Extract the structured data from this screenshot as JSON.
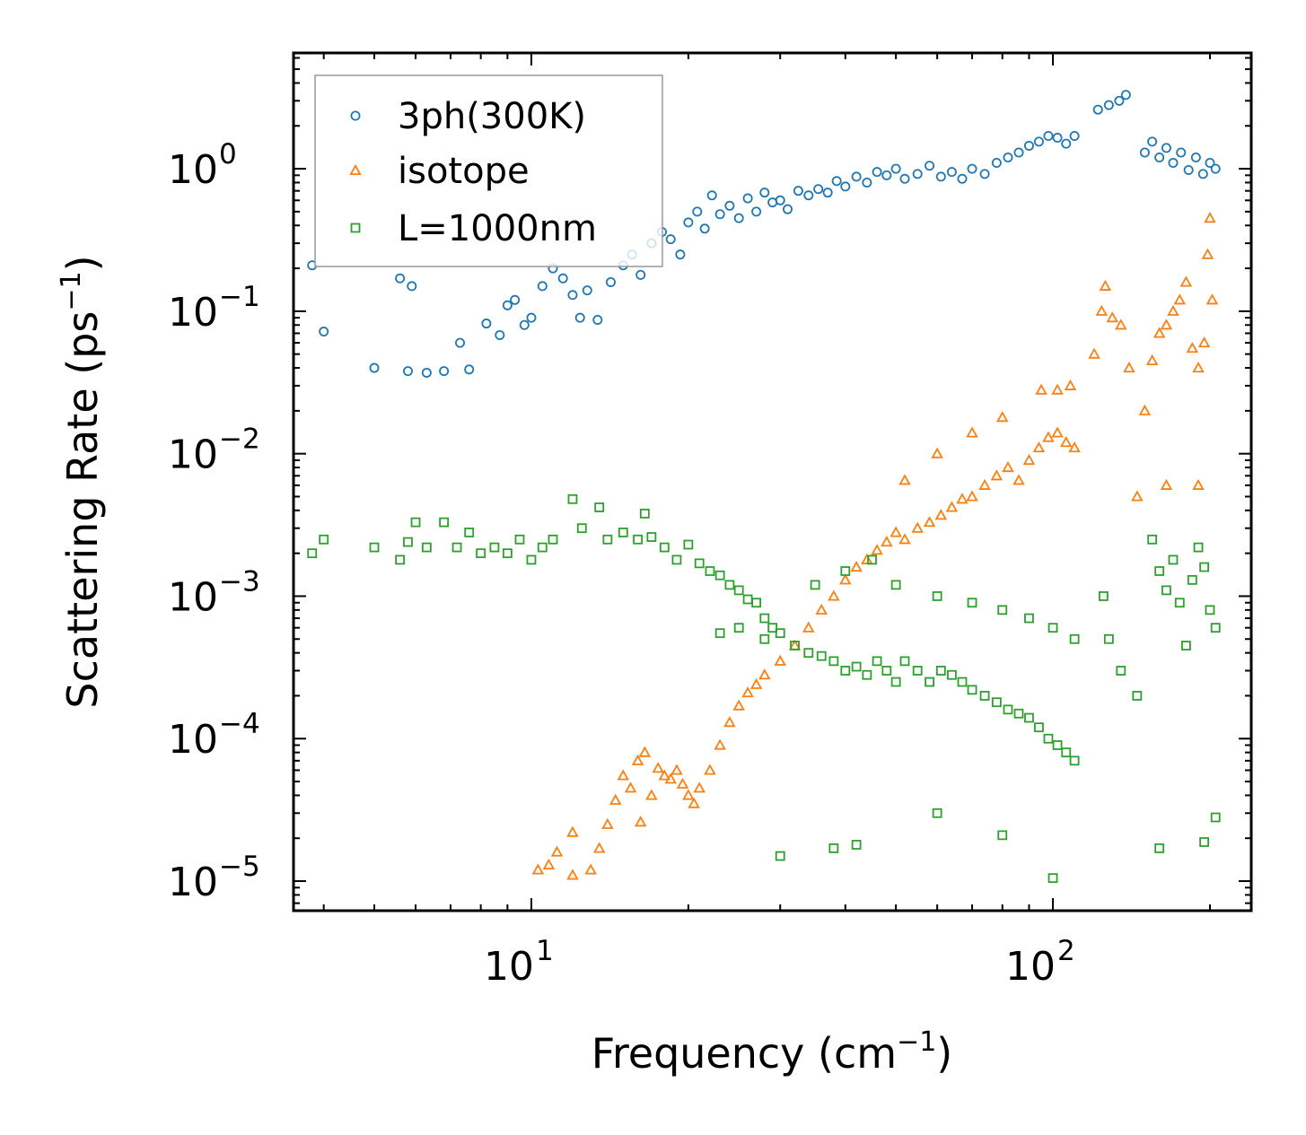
{
  "chart_data": {
    "type": "scatter",
    "xscale": "log",
    "yscale": "log",
    "xlim": [
      3.5,
      240
    ],
    "ylim": [
      6.2e-06,
      6.5
    ],
    "xlabel": {
      "text": "Frequency (cm",
      "sup": "−1",
      "close": ")"
    },
    "ylabel": {
      "text": "Scattering Rate (ps",
      "sup": "−1",
      "close": ")"
    },
    "x_ticks": [
      {
        "value": 10,
        "base": "10",
        "exp": "1"
      },
      {
        "value": 100,
        "base": "10",
        "exp": "2"
      }
    ],
    "y_ticks": [
      {
        "value": 1,
        "base": "10",
        "exp": "0"
      },
      {
        "value": 0.1,
        "base": "10",
        "exp": "−1"
      },
      {
        "value": 0.01,
        "base": "10",
        "exp": "−2"
      },
      {
        "value": 0.001,
        "base": "10",
        "exp": "−3"
      },
      {
        "value": 0.0001,
        "base": "10",
        "exp": "−4"
      },
      {
        "value": 1e-05,
        "base": "10",
        "exp": "−5"
      }
    ],
    "legend": {
      "placement": "top-left"
    },
    "series": [
      {
        "name": "3ph(300K)",
        "marker": "circle",
        "color": "#1f77b4",
        "points": [
          [
            3.8,
            0.21
          ],
          [
            4.0,
            0.072
          ],
          [
            5.0,
            0.04
          ],
          [
            5.6,
            0.17
          ],
          [
            5.8,
            0.038
          ],
          [
            5.9,
            0.15
          ],
          [
            6.3,
            0.037
          ],
          [
            6.8,
            0.038
          ],
          [
            7.3,
            0.06
          ],
          [
            7.6,
            0.039
          ],
          [
            8.2,
            0.082
          ],
          [
            8.7,
            0.068
          ],
          [
            9.0,
            0.11
          ],
          [
            9.3,
            0.12
          ],
          [
            9.7,
            0.08
          ],
          [
            10.0,
            0.09
          ],
          [
            10.5,
            0.15
          ],
          [
            11.0,
            0.2
          ],
          [
            11.5,
            0.17
          ],
          [
            12.0,
            0.13
          ],
          [
            12.4,
            0.09
          ],
          [
            12.8,
            0.14
          ],
          [
            13.4,
            0.087
          ],
          [
            14.2,
            0.16
          ],
          [
            15.0,
            0.21
          ],
          [
            15.6,
            0.25
          ],
          [
            16.2,
            0.18
          ],
          [
            17.0,
            0.3
          ],
          [
            17.8,
            0.36
          ],
          [
            18.5,
            0.32
          ],
          [
            19.3,
            0.25
          ],
          [
            20.0,
            0.42
          ],
          [
            20.8,
            0.5
          ],
          [
            21.5,
            0.38
          ],
          [
            22.2,
            0.65
          ],
          [
            23.0,
            0.48
          ],
          [
            24.0,
            0.55
          ],
          [
            25.0,
            0.45
          ],
          [
            26.0,
            0.62
          ],
          [
            27.0,
            0.5
          ],
          [
            28.0,
            0.68
          ],
          [
            29.0,
            0.58
          ],
          [
            30.0,
            0.6
          ],
          [
            31.0,
            0.52
          ],
          [
            32.5,
            0.7
          ],
          [
            34.0,
            0.65
          ],
          [
            35.5,
            0.72
          ],
          [
            37.0,
            0.68
          ],
          [
            38.5,
            0.82
          ],
          [
            40.0,
            0.75
          ],
          [
            42.0,
            0.88
          ],
          [
            44.0,
            0.8
          ],
          [
            46.0,
            0.95
          ],
          [
            48.0,
            0.9
          ],
          [
            50.0,
            1.0
          ],
          [
            52.0,
            0.85
          ],
          [
            55.0,
            0.92
          ],
          [
            58.0,
            1.05
          ],
          [
            61.0,
            0.88
          ],
          [
            64.0,
            0.95
          ],
          [
            67.0,
            0.85
          ],
          [
            70.0,
            1.0
          ],
          [
            74.0,
            0.92
          ],
          [
            78.0,
            1.1
          ],
          [
            82.0,
            1.2
          ],
          [
            86.0,
            1.3
          ],
          [
            90.0,
            1.45
          ],
          [
            94.0,
            1.55
          ],
          [
            98.0,
            1.7
          ],
          [
            102.0,
            1.65
          ],
          [
            106.0,
            1.5
          ],
          [
            110.0,
            1.7
          ],
          [
            122.0,
            2.6
          ],
          [
            128.0,
            2.8
          ],
          [
            134.0,
            3.0
          ],
          [
            138.0,
            3.3
          ],
          [
            150.0,
            1.3
          ],
          [
            155.0,
            1.55
          ],
          [
            160.0,
            1.2
          ],
          [
            165.0,
            1.4
          ],
          [
            170.0,
            1.1
          ],
          [
            176.0,
            1.3
          ],
          [
            182.0,
            0.98
          ],
          [
            188.0,
            1.2
          ],
          [
            194.0,
            0.92
          ],
          [
            200.0,
            1.1
          ],
          [
            205.0,
            1.0
          ]
        ]
      },
      {
        "name": "isotope",
        "marker": "triangle",
        "color": "#ff7f0e",
        "points": [
          [
            10.3,
            1.2e-05
          ],
          [
            10.8,
            1.3e-05
          ],
          [
            11.2,
            1.6e-05
          ],
          [
            12.0,
            2.2e-05
          ],
          [
            12.0,
            1.1e-05
          ],
          [
            13.0,
            1.2e-05
          ],
          [
            13.5,
            1.7e-05
          ],
          [
            14.0,
            2.5e-05
          ],
          [
            14.5,
            3.7e-05
          ],
          [
            15.0,
            5.5e-05
          ],
          [
            15.5,
            4.5e-05
          ],
          [
            16.0,
            7e-05
          ],
          [
            16.5,
            8e-05
          ],
          [
            16.2,
            2.6e-05
          ],
          [
            17.0,
            4e-05
          ],
          [
            17.5,
            6.2e-05
          ],
          [
            18.0,
            5.5e-05
          ],
          [
            18.5,
            5.2e-05
          ],
          [
            19.0,
            6e-05
          ],
          [
            19.5,
            4.8e-05
          ],
          [
            20.0,
            4e-05
          ],
          [
            20.5,
            3.5e-05
          ],
          [
            21.0,
            4.5e-05
          ],
          [
            22.0,
            6e-05
          ],
          [
            23.0,
            9e-05
          ],
          [
            24.0,
            0.00013
          ],
          [
            25.0,
            0.00017
          ],
          [
            26.0,
            0.00021
          ],
          [
            27.0,
            0.00024
          ],
          [
            28.0,
            0.00028
          ],
          [
            30.0,
            0.00035
          ],
          [
            32.0,
            0.00045
          ],
          [
            34.0,
            0.0006
          ],
          [
            36.0,
            0.0008
          ],
          [
            38.0,
            0.001
          ],
          [
            40.0,
            0.0013
          ],
          [
            42.0,
            0.0016
          ],
          [
            44.0,
            0.0018
          ],
          [
            46.0,
            0.0021
          ],
          [
            48.0,
            0.0024
          ],
          [
            50.0,
            0.0028
          ],
          [
            52.0,
            0.0025
          ],
          [
            55.0,
            0.003
          ],
          [
            58.0,
            0.0033
          ],
          [
            61.0,
            0.0037
          ],
          [
            64.0,
            0.0042
          ],
          [
            67.0,
            0.0048
          ],
          [
            70.0,
            0.005
          ],
          [
            74.0,
            0.006
          ],
          [
            78.0,
            0.007
          ],
          [
            82.0,
            0.008
          ],
          [
            86.0,
            0.0065
          ],
          [
            90.0,
            0.009
          ],
          [
            94.0,
            0.011
          ],
          [
            98.0,
            0.013
          ],
          [
            102.0,
            0.014
          ],
          [
            106.0,
            0.012
          ],
          [
            110.0,
            0.011
          ],
          [
            52.0,
            0.0065
          ],
          [
            60.0,
            0.01
          ],
          [
            70.0,
            0.014
          ],
          [
            80.0,
            0.018
          ],
          [
            95.0,
            0.028
          ],
          [
            102.0,
            0.028
          ],
          [
            108.0,
            0.03
          ],
          [
            120.0,
            0.05
          ],
          [
            124.0,
            0.1
          ],
          [
            126.0,
            0.15
          ],
          [
            130.0,
            0.09
          ],
          [
            135.0,
            0.08
          ],
          [
            140.0,
            0.04
          ],
          [
            145.0,
            0.005
          ],
          [
            150.0,
            0.02
          ],
          [
            155.0,
            0.045
          ],
          [
            160.0,
            0.07
          ],
          [
            165.0,
            0.08
          ],
          [
            170.0,
            0.1
          ],
          [
            175.0,
            0.12
          ],
          [
            180.0,
            0.16
          ],
          [
            185.0,
            0.055
          ],
          [
            190.0,
            0.04
          ],
          [
            195.0,
            0.06
          ],
          [
            198.0,
            0.25
          ],
          [
            200.0,
            0.45
          ],
          [
            202.0,
            0.12
          ],
          [
            190.0,
            0.006
          ],
          [
            165.0,
            0.006
          ]
        ]
      },
      {
        "name": "L=1000nm",
        "marker": "square",
        "color": "#2ca02c",
        "points": [
          [
            3.8,
            0.002
          ],
          [
            4.0,
            0.0025
          ],
          [
            5.0,
            0.0022
          ],
          [
            5.6,
            0.0018
          ],
          [
            5.8,
            0.0024
          ],
          [
            6.0,
            0.0033
          ],
          [
            6.3,
            0.0022
          ],
          [
            6.8,
            0.0033
          ],
          [
            7.2,
            0.0022
          ],
          [
            7.6,
            0.0028
          ],
          [
            8.0,
            0.002
          ],
          [
            8.5,
            0.0022
          ],
          [
            9.0,
            0.002
          ],
          [
            9.5,
            0.0025
          ],
          [
            10.0,
            0.0018
          ],
          [
            10.5,
            0.0022
          ],
          [
            11.0,
            0.0025
          ],
          [
            12.0,
            0.0048
          ],
          [
            12.5,
            0.003
          ],
          [
            13.5,
            0.0042
          ],
          [
            14.0,
            0.0025
          ],
          [
            15.0,
            0.0028
          ],
          [
            16.0,
            0.0025
          ],
          [
            16.5,
            0.0038
          ],
          [
            17.0,
            0.0026
          ],
          [
            18.0,
            0.0022
          ],
          [
            19.0,
            0.0018
          ],
          [
            20.0,
            0.0023
          ],
          [
            21.0,
            0.0017
          ],
          [
            22.0,
            0.0015
          ],
          [
            23.0,
            0.0014
          ],
          [
            24.0,
            0.0012
          ],
          [
            25.0,
            0.0011
          ],
          [
            26.0,
            0.00095
          ],
          [
            27.0,
            0.0009
          ],
          [
            28.0,
            0.0007
          ],
          [
            29.0,
            0.0006
          ],
          [
            30.0,
            0.00055
          ],
          [
            32.0,
            0.00045
          ],
          [
            34.0,
            0.0004
          ],
          [
            36.0,
            0.00038
          ],
          [
            38.0,
            0.00035
          ],
          [
            40.0,
            0.0003
          ],
          [
            42.0,
            0.00032
          ],
          [
            44.0,
            0.00028
          ],
          [
            46.0,
            0.00035
          ],
          [
            48.0,
            0.0003
          ],
          [
            50.0,
            0.00025
          ],
          [
            52.0,
            0.00035
          ],
          [
            55.0,
            0.0003
          ],
          [
            58.0,
            0.00025
          ],
          [
            61.0,
            0.0003
          ],
          [
            64.0,
            0.00028
          ],
          [
            67.0,
            0.00025
          ],
          [
            70.0,
            0.00022
          ],
          [
            74.0,
            0.0002
          ],
          [
            78.0,
            0.00018
          ],
          [
            82.0,
            0.00016
          ],
          [
            86.0,
            0.00015
          ],
          [
            90.0,
            0.00014
          ],
          [
            94.0,
            0.00012
          ],
          [
            98.0,
            0.0001
          ],
          [
            102.0,
            9e-05
          ],
          [
            106.0,
            8e-05
          ],
          [
            110.0,
            7e-05
          ],
          [
            35.0,
            0.0012
          ],
          [
            40.0,
            0.0015
          ],
          [
            45.0,
            0.0018
          ],
          [
            50.0,
            0.0012
          ],
          [
            60.0,
            0.001
          ],
          [
            70.0,
            0.0009
          ],
          [
            80.0,
            0.0008
          ],
          [
            90.0,
            0.0007
          ],
          [
            100.0,
            0.0006
          ],
          [
            110.0,
            0.0005
          ],
          [
            125.0,
            0.001
          ],
          [
            128.0,
            0.0005
          ],
          [
            135.0,
            0.0003
          ],
          [
            145.0,
            0.0002
          ],
          [
            155.0,
            0.0025
          ],
          [
            160.0,
            0.0015
          ],
          [
            165.0,
            0.0011
          ],
          [
            170.0,
            0.0018
          ],
          [
            175.0,
            0.0009
          ],
          [
            180.0,
            0.00045
          ],
          [
            185.0,
            0.0013
          ],
          [
            190.0,
            0.0022
          ],
          [
            195.0,
            0.0016
          ],
          [
            200.0,
            0.0008
          ],
          [
            205.0,
            0.0006
          ],
          [
            30.0,
            1.5e-05
          ],
          [
            38.0,
            1.7e-05
          ],
          [
            42.0,
            1.8e-05
          ],
          [
            60.0,
            3e-05
          ],
          [
            80.0,
            2.1e-05
          ],
          [
            100.0,
            1.05e-05
          ],
          [
            160.0,
            1.7e-05
          ],
          [
            195.0,
            1.88e-05
          ],
          [
            205.0,
            2.8e-05
          ],
          [
            23.0,
            0.00055
          ],
          [
            25.0,
            0.0006
          ],
          [
            28.0,
            0.0005
          ]
        ]
      }
    ]
  }
}
